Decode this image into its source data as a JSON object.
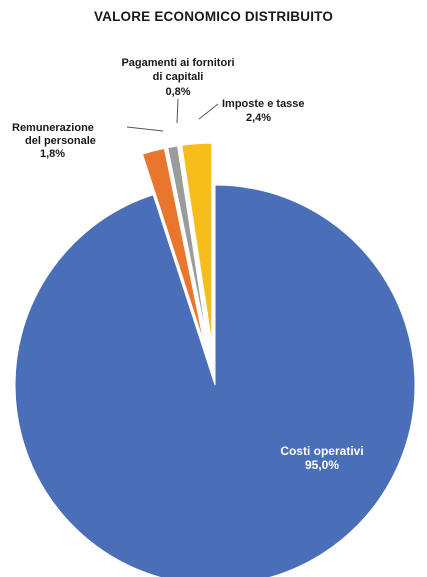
{
  "chart_data": {
    "type": "pie",
    "title": "VALORE ECONOMICO DISTRIBUITO",
    "slices": [
      {
        "name": "Costi operativi",
        "line1": "Costi operativi",
        "line2": "",
        "value_label": "95,0%",
        "value": 95.0,
        "color": "#4a6fb8",
        "exploded": false
      },
      {
        "name": "Remunerazione del personale",
        "line1": "Remunerazione",
        "line2": "del personale",
        "value_label": "1,8%",
        "value": 1.8,
        "color": "#e8762d",
        "exploded": true
      },
      {
        "name": "Pagamenti ai fornitori di capitali",
        "line1": "Pagamenti ai fornitori",
        "line2": "di capitali",
        "value_label": "0,8%",
        "value": 0.8,
        "color": "#9b9b9b",
        "exploded": true
      },
      {
        "name": "Imposte e tasse",
        "line1": "Imposte e tasse",
        "line2": "",
        "value_label": "2,4%",
        "value": 2.4,
        "color": "#f7bd1a",
        "exploded": true
      }
    ],
    "legend": "none",
    "label_color": "#ffffff",
    "annotation_color": "#1a1a1a"
  }
}
